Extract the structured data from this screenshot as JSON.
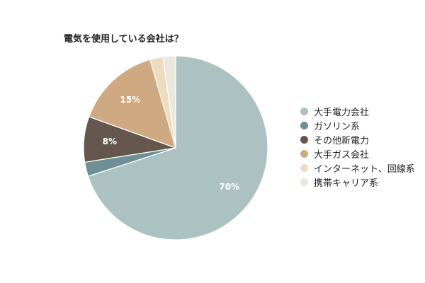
{
  "chart_data": {
    "type": "pie",
    "title": "電気を使用している会社は？",
    "slices": [
      {
        "label": "大手電力会社",
        "value": 70,
        "color": "#abc1c2",
        "data_label": "70%"
      },
      {
        "label": "ガソリン系",
        "value": 2.5,
        "color": "#6d8f95",
        "data_label": ""
      },
      {
        "label": "その他新電力",
        "value": 8,
        "color": "#65574d",
        "data_label": "8%"
      },
      {
        "label": "大手ガス会社",
        "value": 15,
        "color": "#cfa982",
        "data_label": "15%"
      },
      {
        "label": "インターネット、回線系",
        "value": 2.3,
        "color": "#ecdcc0",
        "data_label": ""
      },
      {
        "label": "携帯キャリア系",
        "value": 2.2,
        "color": "#e9e8dd",
        "data_label": ""
      }
    ],
    "legend_position": "right"
  }
}
